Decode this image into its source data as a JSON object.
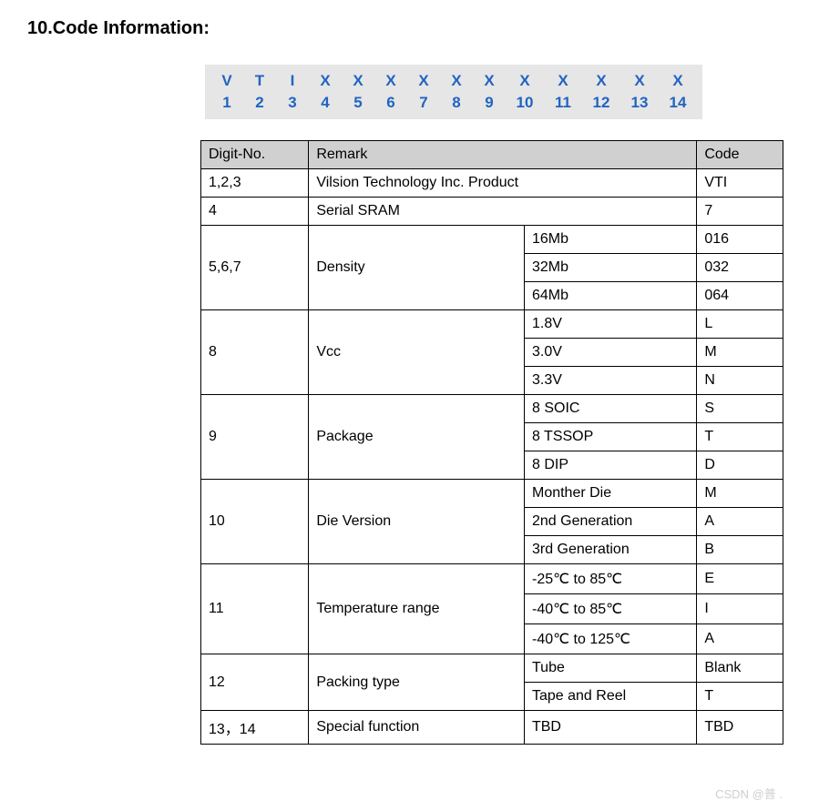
{
  "title": "10.Code Information:",
  "codeStrip": {
    "letters": [
      "V",
      "T",
      "I",
      "X",
      "X",
      "X",
      "X",
      "X",
      "X",
      "X",
      "X",
      "X",
      "X",
      "X"
    ],
    "numbers": [
      "1",
      "2",
      "3",
      "4",
      "5",
      "6",
      "7",
      "8",
      "9",
      "10",
      "11",
      "12",
      "13",
      "14"
    ]
  },
  "columns": {
    "digit": "Digit-No.",
    "remark": "Remark",
    "code": "Code"
  },
  "rows": [
    {
      "digit": "1,2,3",
      "remarkFull": "Vilsion Technology Inc. Product",
      "code": "VTI"
    },
    {
      "digit": "4",
      "remarkFull": "Serial SRAM",
      "code": "7"
    },
    {
      "digit": "5,6,7",
      "remark": "Density",
      "subs": [
        {
          "label": "16Mb",
          "code": "016"
        },
        {
          "label": "32Mb",
          "code": "032"
        },
        {
          "label": "64Mb",
          "code": "064"
        }
      ]
    },
    {
      "digit": "8",
      "remark": "Vcc",
      "subs": [
        {
          "label": "1.8V",
          "code": "L"
        },
        {
          "label": "3.0V",
          "code": "M"
        },
        {
          "label": "3.3V",
          "code": "N"
        }
      ]
    },
    {
      "digit": "9",
      "remark": "Package",
      "subs": [
        {
          "label": "8 SOIC",
          "code": "S"
        },
        {
          "label": "8 TSSOP",
          "code": "T"
        },
        {
          "label": "8 DIP",
          "code": "D"
        }
      ]
    },
    {
      "digit": "10",
      "remark": "Die Version",
      "subs": [
        {
          "label": "Monther Die",
          "code": "M"
        },
        {
          "label": "2nd Generation",
          "code": "A"
        },
        {
          "label": "3rd Generation",
          "code": "B"
        }
      ]
    },
    {
      "digit": "11",
      "remark": "Temperature range",
      "subs": [
        {
          "label": "-25℃ to 85℃",
          "code": "E"
        },
        {
          "label": "-40℃ to 85℃",
          "code": "I"
        },
        {
          "label": "-40℃ to 125℃",
          "code": "A"
        }
      ]
    },
    {
      "digit": "12",
      "remark": "Packing type",
      "subs": [
        {
          "label": "Tube",
          "code": "Blank"
        },
        {
          "label": "Tape and Reel",
          "code": "T"
        }
      ]
    },
    {
      "digit": "13，14",
      "remark": "Special function",
      "subs": [
        {
          "label": "TBD",
          "code": "TBD"
        }
      ]
    }
  ],
  "watermark": "CSDN @普 .",
  "styling": {
    "strip_bg": "#e6e6e6",
    "strip_text_color": "#2164c2",
    "header_bg": "#d0d0d0",
    "border_color": "#000000",
    "font_family": "Arial",
    "body_fontsize": 16,
    "title_fontsize": 20,
    "strip_fontsize": 17
  }
}
